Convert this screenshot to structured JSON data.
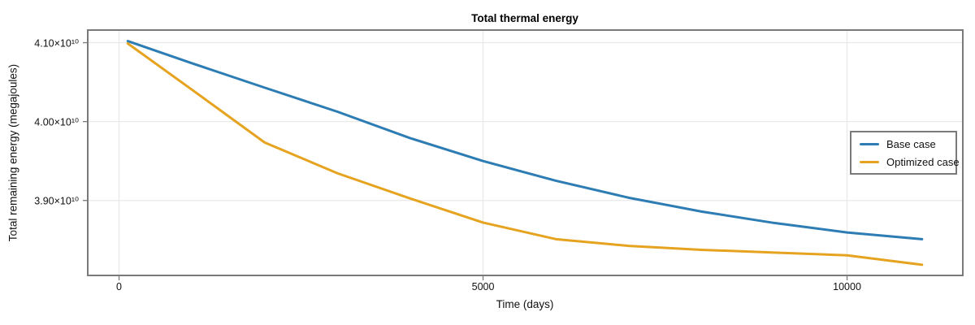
{
  "chart_data": {
    "type": "line",
    "title": "Total thermal energy",
    "xlabel": "Time (days)",
    "ylabel": "Total remaining energy (megajoules)",
    "xlim": [
      -430,
      11590
    ],
    "ylim": [
      38050000000.0,
      41160000000.0
    ],
    "grid": true,
    "legend_position": "right-center-inside",
    "frame_color": "#7a7a7a",
    "grid_color": "#e9e9e9",
    "xticks": [
      {
        "value": 0,
        "label": "0"
      },
      {
        "value": 5000,
        "label": "5000"
      },
      {
        "value": 10000,
        "label": "10000"
      }
    ],
    "yticks": [
      {
        "value": 41000000000.0,
        "label": "4.10×10¹⁰"
      },
      {
        "value": 40000000000.0,
        "label": "4.00×10¹⁰"
      },
      {
        "value": 39000000000.0,
        "label": "3.90×10¹⁰"
      }
    ],
    "series": [
      {
        "name": "Base case",
        "color": "#2d7db4",
        "x": [
          120,
          1000,
          2000,
          3000,
          4000,
          5000,
          6000,
          7000,
          8000,
          9000,
          10000,
          11030
        ],
        "y": [
          41020000000.0,
          40740000000.0,
          40430000000.0,
          40125000000.0,
          39790000000.0,
          39500000000.0,
          39250000000.0,
          39035000000.0,
          38860000000.0,
          38715000000.0,
          38595000000.0,
          38510000000.0
        ]
      },
      {
        "name": "Optimized case",
        "color": "#e5a320",
        "x": [
          120,
          1000,
          2000,
          3000,
          4000,
          5000,
          6000,
          7000,
          8000,
          9000,
          10000,
          11030
        ],
        "y": [
          40990000000.0,
          40405000000.0,
          39735000000.0,
          39345000000.0,
          39025000000.0,
          38720000000.0,
          38510000000.0,
          38425000000.0,
          38375000000.0,
          38340000000.0,
          38305000000.0,
          38185000000.0
        ]
      }
    ]
  }
}
